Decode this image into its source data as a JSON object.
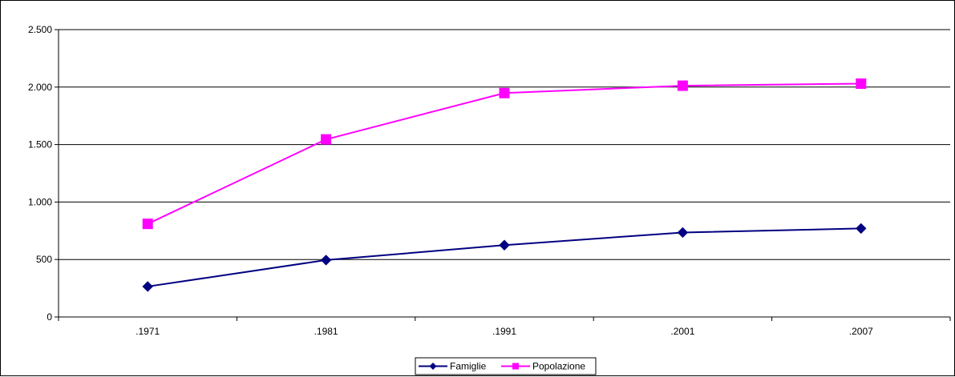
{
  "chart_data": {
    "type": "line",
    "categories": [
      ".1971",
      ".1981",
      ".1991",
      ".2001",
      ".2007"
    ],
    "series": [
      {
        "name": "Famiglie",
        "values": [
          265,
          495,
          625,
          735,
          770
        ],
        "color": "#000080",
        "marker": "diamond"
      },
      {
        "name": "Popolazione",
        "values": [
          810,
          1545,
          1948,
          2012,
          2030
        ],
        "color": "#FF00FF",
        "marker": "square"
      }
    ],
    "ylim": [
      0,
      2500
    ],
    "yticks": [
      0,
      500,
      1000,
      1500,
      2000,
      2500
    ],
    "ytick_labels": [
      "0",
      "500",
      "1.000",
      "1.500",
      "2.000",
      "2.500"
    ],
    "grid": true,
    "legend_position": "bottom-center",
    "title": "",
    "xlabel": "",
    "ylabel": ""
  }
}
